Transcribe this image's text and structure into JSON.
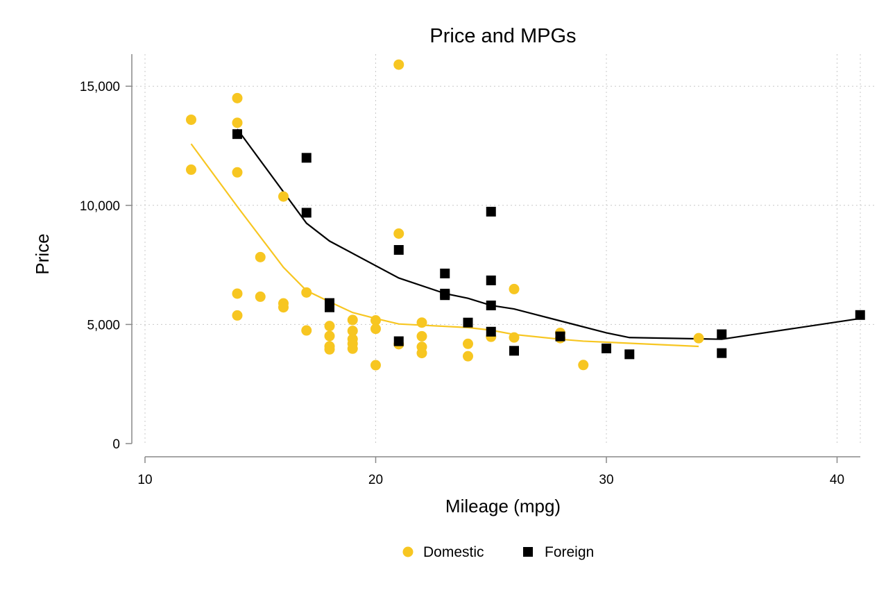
{
  "chart_data": {
    "type": "scatter",
    "title": "Price and MPGs",
    "xlabel": "Mileage (mpg)",
    "ylabel": "Price",
    "xlim": [
      10,
      41
    ],
    "ylim": [
      0,
      15906
    ],
    "x_ticks": [
      10,
      20,
      30,
      40
    ],
    "x_tick_labels": [
      "10",
      "20",
      "30",
      "40"
    ],
    "y_ticks": [
      0,
      5000,
      10000,
      15000
    ],
    "y_tick_labels": [
      "0",
      "5,000",
      "10,000",
      "15,000"
    ],
    "grid": true,
    "legend_position": "bottom",
    "colors": {
      "domestic": "#f7c621",
      "foreign": "#000000"
    },
    "series": [
      {
        "name": "Domestic",
        "kind": "scatter",
        "marker": "circle",
        "color": "#f7c621",
        "points": [
          [
            12,
            13594
          ],
          [
            12,
            11497
          ],
          [
            14,
            14500
          ],
          [
            14,
            13466
          ],
          [
            14,
            11385
          ],
          [
            14,
            6295
          ],
          [
            14,
            5379
          ],
          [
            15,
            7827
          ],
          [
            15,
            6165
          ],
          [
            16,
            10371
          ],
          [
            16,
            5886
          ],
          [
            16,
            5719
          ],
          [
            17,
            6342
          ],
          [
            17,
            4749
          ],
          [
            18,
            4934
          ],
          [
            18,
            4516
          ],
          [
            18,
            4082
          ],
          [
            18,
            3955
          ],
          [
            19,
            5189
          ],
          [
            19,
            4733
          ],
          [
            19,
            4389
          ],
          [
            19,
            4191
          ],
          [
            19,
            3984
          ],
          [
            20,
            5172
          ],
          [
            20,
            4816
          ],
          [
            20,
            3291
          ],
          [
            21,
            15906
          ],
          [
            21,
            8814
          ],
          [
            21,
            4172
          ],
          [
            22,
            5079
          ],
          [
            22,
            4504
          ],
          [
            22,
            4060
          ],
          [
            22,
            3799
          ],
          [
            24,
            4187
          ],
          [
            24,
            3667
          ],
          [
            25,
            4482
          ],
          [
            26,
            6486
          ],
          [
            26,
            4453
          ],
          [
            28,
            4647
          ],
          [
            28,
            4425
          ],
          [
            29,
            3299
          ],
          [
            34,
            4424
          ]
        ]
      },
      {
        "name": "Foreign",
        "kind": "scatter",
        "marker": "square",
        "color": "#000000",
        "points": [
          [
            14,
            12990
          ],
          [
            17,
            11995
          ],
          [
            17,
            9690
          ],
          [
            18,
            5899
          ],
          [
            18,
            5719
          ],
          [
            21,
            8129
          ],
          [
            21,
            4296
          ],
          [
            23,
            7140
          ],
          [
            23,
            6295
          ],
          [
            23,
            6229
          ],
          [
            24,
            5079
          ],
          [
            25,
            9735
          ],
          [
            25,
            6850
          ],
          [
            25,
            5799
          ],
          [
            25,
            4697
          ],
          [
            26,
            3895
          ],
          [
            28,
            4499
          ],
          [
            30,
            3995
          ],
          [
            31,
            3748
          ],
          [
            35,
            4589
          ],
          [
            35,
            3798
          ],
          [
            41,
            5397
          ]
        ]
      },
      {
        "name": "Domestic fit",
        "kind": "line",
        "color": "#f7c621",
        "points": [
          [
            12,
            12580
          ],
          [
            14,
            9950
          ],
          [
            16,
            7400
          ],
          [
            17,
            6420
          ],
          [
            18,
            5950
          ],
          [
            19,
            5500
          ],
          [
            20,
            5250
          ],
          [
            21,
            5020
          ],
          [
            22,
            4970
          ],
          [
            24,
            4870
          ],
          [
            25,
            4760
          ],
          [
            26,
            4580
          ],
          [
            28,
            4380
          ],
          [
            29,
            4300
          ],
          [
            34,
            4080
          ]
        ]
      },
      {
        "name": "Foreign fit",
        "kind": "line",
        "color": "#000000",
        "points": [
          [
            14,
            13200
          ],
          [
            17,
            9250
          ],
          [
            18,
            8500
          ],
          [
            21,
            6950
          ],
          [
            23,
            6300
          ],
          [
            24,
            6100
          ],
          [
            25,
            5800
          ],
          [
            26,
            5650
          ],
          [
            28,
            5150
          ],
          [
            30,
            4650
          ],
          [
            31,
            4450
          ],
          [
            35,
            4380
          ],
          [
            41,
            5250
          ]
        ]
      }
    ],
    "legend": [
      {
        "label": "Domestic",
        "marker": "circle",
        "color": "#f7c621"
      },
      {
        "label": "Foreign",
        "marker": "square",
        "color": "#000000"
      }
    ]
  }
}
